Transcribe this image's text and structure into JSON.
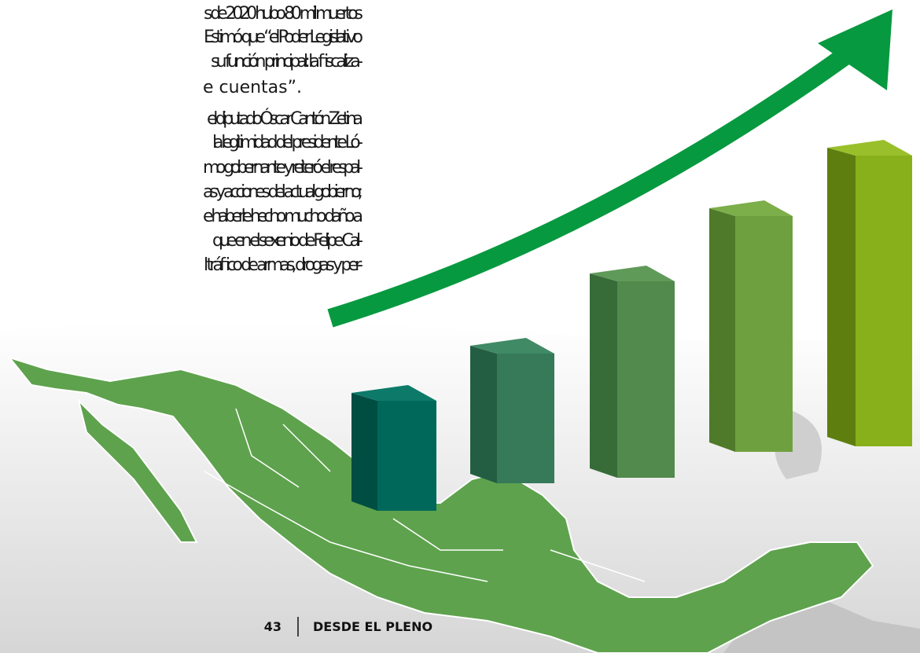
{
  "body": {
    "lines": [
      "s de 2020 hubo 80 mil muertos",
      "Estimó que “el Poder Legislativo",
      "su función principal: la fiscaliza-",
      "e cuentas”.",
      "el diputado Óscar Cantón Zetina",
      "la legitimidad del presidente Ló-",
      "mo gobernante y reiteró el respal-",
      "as y acciones del actual gobierno;",
      "e haberle hecho mucho daño a",
      "que en el sexenio de Felipe Cal-",
      "l tráfico de armas, drogas y per-"
    ]
  },
  "footer": {
    "page": "43",
    "section": "DESDE EL PLENO"
  }
}
